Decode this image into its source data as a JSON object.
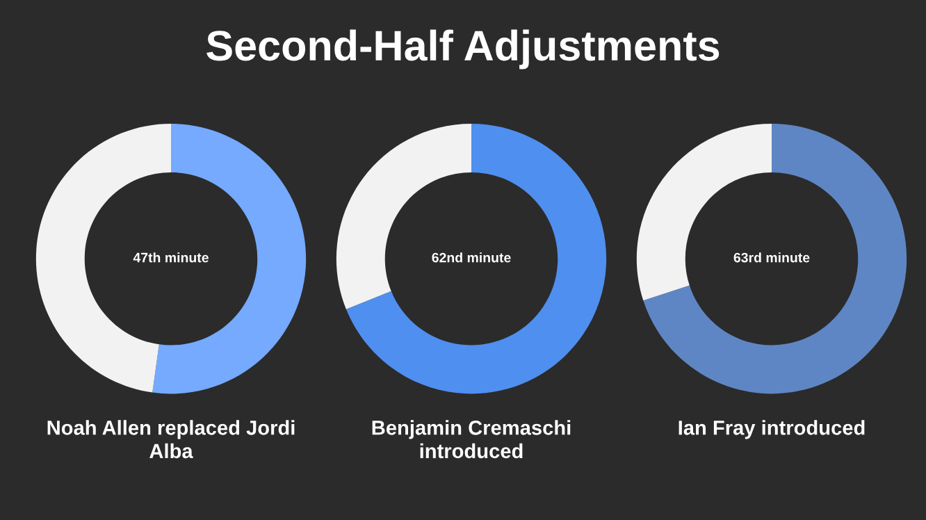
{
  "chart_data": [
    {
      "type": "donut",
      "title": "Second-Half Adjustments",
      "categories": [
        null,
        null
      ],
      "values": [
        52.2,
        47.8
      ],
      "colors": [
        "#75aaff",
        "#f2f2f2"
      ],
      "annotations": [
        "47th minute"
      ],
      "xlabel": "Noah Allen replaced Jordi Alba"
    },
    {
      "type": "donut",
      "categories": [
        null,
        null
      ],
      "values": [
        68.9,
        31.1
      ],
      "colors": [
        "#4f8fef",
        "#f2f2f2"
      ],
      "annotations": [
        "62nd minute"
      ],
      "xlabel": "Benjamin Cremaschi introduced"
    },
    {
      "type": "donut",
      "categories": [
        null,
        null
      ],
      "values": [
        70,
        30
      ],
      "colors": [
        "#5f86c4",
        "#f2f2f2"
      ],
      "annotations": [
        "63rd minute"
      ],
      "xlabel": "Ian Fray introduced"
    }
  ]
}
